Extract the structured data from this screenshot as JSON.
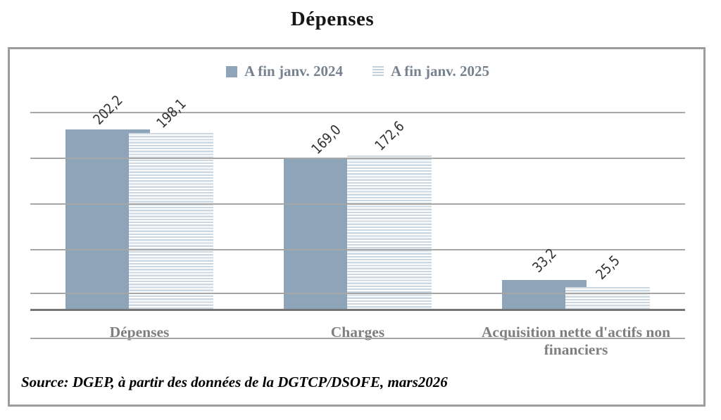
{
  "title": "Dépenses",
  "source_note": "Source: DGEP, à partir des données de la DGTCP/DSOFE, mars2026",
  "legend": {
    "items": [
      {
        "label": "A fin janv. 2024",
        "swatch": "solid-square"
      },
      {
        "label": "A fin janv. 2025",
        "swatch": "striped-square"
      }
    ]
  },
  "colors": {
    "series_2024_fill": "#8ea4b8",
    "series_2025_stripe": "#ccd8e1",
    "gridline": "#a6a6a6",
    "axis_line": "#757575",
    "category_label_text": "#7f7f7f",
    "legend_text": "#76828f",
    "value_label_text": "#303030",
    "title_text": "#161616",
    "border": "#9c9c9c"
  },
  "chart_data": {
    "type": "bar",
    "title": "Dépenses",
    "categories": [
      "Dépenses",
      "Charges",
      "Acquisition nette d'actifs non financiers"
    ],
    "series": [
      {
        "name": "A fin janv. 2024",
        "values": [
          202.2,
          169.0,
          33.2
        ],
        "labels": [
          "202,2",
          "169,0",
          "33,2"
        ],
        "pattern": "solid"
      },
      {
        "name": "A fin janv. 2025",
        "values": [
          198.1,
          172.6,
          25.5
        ],
        "labels": [
          "198,1",
          "172,6",
          "25,5"
        ],
        "pattern": "horizontal-stripes"
      }
    ],
    "xlabel": "",
    "ylabel": "",
    "ylim": [
      -30,
      250
    ],
    "y_axis_labels_visible": false,
    "gridlines": "horizontal",
    "legend_position": "top-center",
    "value_label_rotation_deg": 45,
    "decimal_separator": ","
  }
}
